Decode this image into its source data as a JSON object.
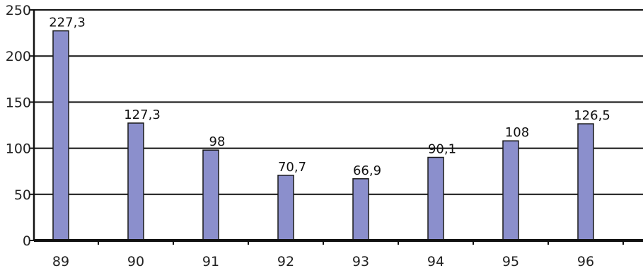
{
  "chart_data": {
    "type": "bar",
    "title": "",
    "xlabel": "",
    "ylabel": "",
    "categories": [
      "89",
      "90",
      "91",
      "92",
      "93",
      "94",
      "95",
      "96"
    ],
    "values": [
      227.3,
      127.3,
      98,
      70.7,
      66.9,
      90.1,
      108,
      126.5
    ],
    "data_labels": [
      "227,3",
      "127,3",
      "98",
      "70,7",
      "66,9",
      "90,1",
      "108",
      "126,5"
    ],
    "y_ticks": [
      "0",
      "50",
      "100",
      "150",
      "200",
      "250"
    ],
    "y_tick_values": [
      0,
      50,
      100,
      150,
      200,
      250
    ],
    "ylim": [
      0,
      250
    ],
    "grid": true,
    "legend": "none",
    "colors": {
      "bar_fill": "#8B8FCC",
      "bar_stroke": "#1a1a1a",
      "grid": "#111111",
      "axis": "#111111"
    }
  }
}
